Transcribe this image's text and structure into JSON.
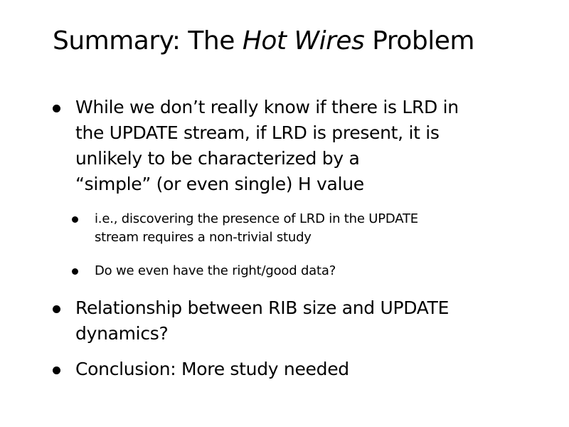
{
  "title": {
    "prefix": "Summary: The ",
    "emphasis": "Hot Wires",
    "suffix": " Problem"
  },
  "bullets": [
    {
      "text": "While we don’t really know if there is LRD in\nthe UPDATE stream,  if LRD is present, it is\nunlikely to be characterized by a\n“simple” (or even single) H value",
      "sub_bullets": [
        {
          "text": "i.e., discovering the presence of LRD in the UPDATE\nstream requires a non-trivial study"
        },
        {
          "text": "Do we even have the right/good data?"
        }
      ]
    },
    {
      "text": "Relationship between RIB size and UPDATE\ndynamics?"
    },
    {
      "text": "Conclusion: More study needed"
    }
  ]
}
